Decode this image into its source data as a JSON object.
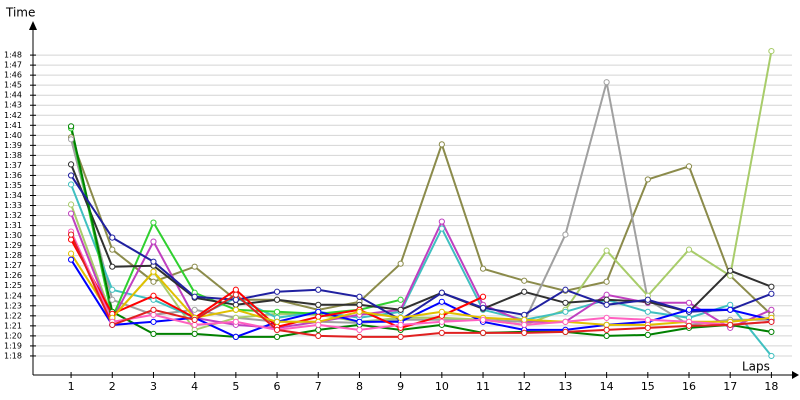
{
  "chart_data": {
    "type": "line",
    "x_label": "Laps",
    "y_label": "Time",
    "x": [
      1,
      2,
      3,
      4,
      5,
      6,
      7,
      8,
      9,
      10,
      11,
      12,
      13,
      14,
      15,
      16,
      17,
      18
    ],
    "xlim": [
      0.1,
      18.5
    ],
    "xticks": [
      1,
      2,
      3,
      4,
      5,
      6,
      7,
      8,
      9,
      10,
      11,
      12,
      13,
      14,
      15,
      16,
      17,
      18
    ],
    "ylim": [
      76.1,
      111.3
    ],
    "yticks": [
      {
        "value": 78,
        "label": "1:18"
      },
      {
        "value": 79,
        "label": "1:19"
      },
      {
        "value": 80,
        "label": "1:20"
      },
      {
        "value": 81,
        "label": "1:21"
      },
      {
        "value": 82,
        "label": "1:22"
      },
      {
        "value": 83,
        "label": "1:23"
      },
      {
        "value": 84,
        "label": "1:24"
      },
      {
        "value": 85,
        "label": "1:25"
      },
      {
        "value": 86,
        "label": "1:26"
      },
      {
        "value": 87,
        "label": "1:27"
      },
      {
        "value": 88,
        "label": "1:28"
      },
      {
        "value": 89,
        "label": "1:29"
      },
      {
        "value": 90,
        "label": "1:30"
      },
      {
        "value": 91,
        "label": "1:31"
      },
      {
        "value": 92,
        "label": "1:32"
      },
      {
        "value": 93,
        "label": "1:33"
      },
      {
        "value": 94,
        "label": "1:34"
      },
      {
        "value": 95,
        "label": "1:35"
      },
      {
        "value": 96,
        "label": "1:36"
      },
      {
        "value": 97,
        "label": "1:37"
      },
      {
        "value": 98,
        "label": "1:38"
      },
      {
        "value": 99,
        "label": "1:39"
      },
      {
        "value": 100,
        "label": "1:40"
      },
      {
        "value": 101,
        "label": "1:41"
      },
      {
        "value": 102,
        "label": "1:42"
      },
      {
        "value": 103,
        "label": "1:43"
      },
      {
        "value": 104,
        "label": "1:44"
      },
      {
        "value": 105,
        "label": "1:45"
      },
      {
        "value": 106,
        "label": "1:46"
      },
      {
        "value": 107,
        "label": "1:47"
      },
      {
        "value": 108,
        "label": "1:48"
      }
    ],
    "grid": true,
    "series": [
      {
        "color": "#8b8b4b",
        "values": [
          99.8,
          88.6,
          85.4,
          86.9,
          83.6,
          83.6,
          82.6,
          83.4,
          87.2,
          99.1,
          86.7,
          85.5,
          84.5,
          85.4,
          95.6,
          96.9,
          86.0,
          82.1
        ]
      },
      {
        "color": "#a0a0a0",
        "values": [
          99.6,
          83.6,
          82.1,
          82.6,
          81.8,
          81.4,
          81.4,
          81.3,
          81.6,
          81.6,
          81.6,
          81.4,
          90.1,
          105.3,
          83.6,
          81.1,
          81.6,
          81.6
        ]
      },
      {
        "color": "#a8cc6a",
        "values": [
          93.1,
          81.8,
          86.4,
          80.6,
          81.8,
          82.2,
          82.1,
          81.4,
          81.8,
          81.8,
          81.6,
          81.1,
          82.6,
          88.5,
          84.0,
          88.6,
          86.0,
          108.4
        ]
      },
      {
        "color": "#40c0c0",
        "values": [
          95.1,
          84.6,
          83.6,
          81.8,
          83.8,
          81.8,
          82.4,
          81.8,
          82.4,
          90.7,
          82.6,
          81.6,
          82.4,
          83.6,
          82.4,
          81.8,
          83.1,
          78.0
        ]
      },
      {
        "color": "#c040c0",
        "values": [
          92.2,
          81.6,
          89.4,
          81.8,
          81.1,
          80.8,
          81.4,
          82.1,
          82.6,
          91.4,
          83.1,
          81.4,
          81.4,
          84.1,
          83.3,
          83.3,
          80.8,
          82.6
        ]
      },
      {
        "color": "#30d030",
        "values": [
          100.7,
          81.8,
          91.3,
          84.3,
          82.6,
          82.4,
          82.2,
          82.6,
          83.6,
          null,
          null,
          null,
          null,
          null,
          null,
          null,
          null,
          null
        ]
      },
      {
        "color": "#303030",
        "values": [
          97.1,
          86.9,
          87.0,
          83.8,
          83.1,
          83.6,
          83.1,
          83.1,
          82.6,
          84.3,
          82.7,
          84.4,
          83.3,
          83.6,
          83.4,
          82.4,
          86.5,
          84.9
        ]
      },
      {
        "color": "#008000",
        "values": [
          100.9,
          82.4,
          80.2,
          80.2,
          79.9,
          79.9,
          80.6,
          81.1,
          80.6,
          81.1,
          80.3,
          80.4,
          80.4,
          80.0,
          80.1,
          80.8,
          81.1,
          80.4
        ]
      },
      {
        "color": "#2020a0",
        "values": [
          96.0,
          89.8,
          87.4,
          83.9,
          83.6,
          84.4,
          84.6,
          83.9,
          81.6,
          84.3,
          82.8,
          82.1,
          84.6,
          83.1,
          83.6,
          82.4,
          82.6,
          84.2
        ]
      },
      {
        "color": "#0000ff",
        "values": [
          87.6,
          81.1,
          81.4,
          81.8,
          79.9,
          81.4,
          82.4,
          81.4,
          81.4,
          83.4,
          81.4,
          80.6,
          80.6,
          81.1,
          81.4,
          82.6,
          82.6,
          81.6
        ]
      },
      {
        "color": "#ff0000",
        "values": [
          89.6,
          82.2,
          84.0,
          81.8,
          84.6,
          80.9,
          81.9,
          82.6,
          80.8,
          82.0,
          83.9,
          null,
          null,
          null,
          null,
          null,
          null,
          null
        ]
      },
      {
        "color": "#e0c000",
        "values": [
          88.2,
          81.8,
          86.4,
          81.8,
          82.6,
          81.4,
          81.4,
          82.4,
          81.8,
          82.4,
          81.8,
          81.6,
          81.4,
          81.1,
          81.1,
          81.4,
          81.4,
          81.8
        ]
      },
      {
        "color": "#ff60c0",
        "values": [
          90.4,
          81.4,
          82.1,
          81.1,
          81.4,
          80.6,
          81.1,
          80.6,
          81.1,
          81.4,
          81.6,
          81.1,
          81.4,
          81.8,
          81.6,
          81.4,
          81.1,
          81.4
        ]
      },
      {
        "color": "#e02020",
        "values": [
          90.1,
          81.1,
          82.6,
          81.6,
          84.1,
          80.6,
          80.0,
          79.9,
          79.9,
          80.3,
          80.3,
          80.3,
          80.4,
          80.6,
          80.8,
          81.0,
          81.1,
          81.4
        ]
      }
    ]
  }
}
